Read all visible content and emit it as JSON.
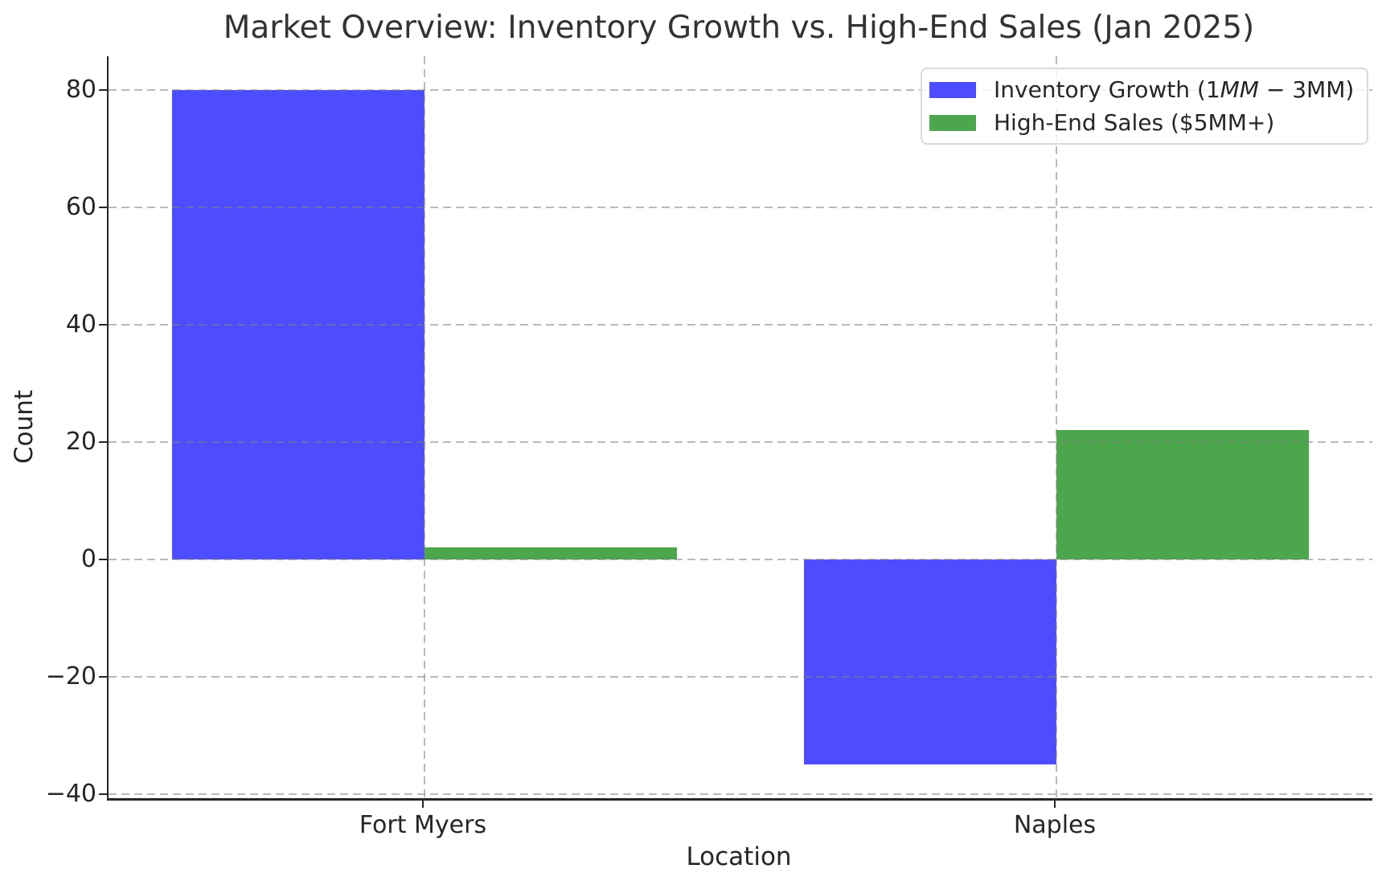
{
  "chart_data": {
    "type": "bar",
    "title": "Market Overview: Inventory Growth vs. High-End Sales (Jan 2025)",
    "xlabel": "Location",
    "ylabel": "Count",
    "categories": [
      "Fort Myers",
      "Naples"
    ],
    "series": [
      {
        "name": "Inventory Growth (1MM − 3MM)",
        "legend_segments": [
          {
            "text": "Inventory Growth (1",
            "italic": false
          },
          {
            "text": "MM",
            "italic": true
          },
          {
            "text": " − 3MM)",
            "italic": false
          }
        ],
        "color": "#4d4dff",
        "values": [
          80,
          -35
        ]
      },
      {
        "name": "High-End Sales ($5MM+)",
        "legend_segments": [
          {
            "text": "High-End Sales ($5MM+)",
            "italic": false
          }
        ],
        "color": "#4ca64c",
        "values": [
          2,
          22
        ]
      }
    ],
    "yticks": [
      80,
      60,
      40,
      20,
      0,
      -20,
      -40
    ],
    "ytick_labels": [
      "80",
      "60",
      "40",
      "20",
      "0",
      "−20",
      "−40"
    ],
    "ylim": [
      -40.75,
      85.75
    ],
    "xlim": [
      -0.5,
      1.5
    ],
    "bar_width": 0.4,
    "grid": true,
    "grid_on_top": true,
    "legend_position": "upper right",
    "colors": {
      "text": "#262626",
      "title": "#333333",
      "spine": "#262626",
      "grid": "#c0c0c0",
      "background": "#ffffff"
    }
  }
}
